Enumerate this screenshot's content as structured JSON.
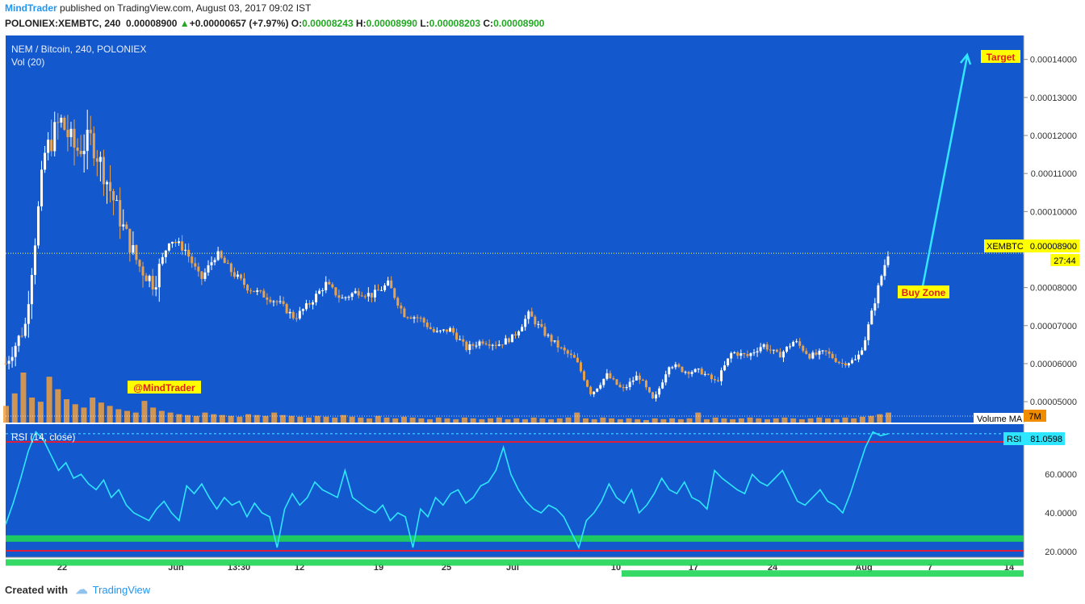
{
  "header": {
    "author": "MindTrader",
    "published_text": "published on TradingView.com, August 03, 2017 09:02 IST",
    "symbol_line": "POLONIEX:XEMBTC, 240",
    "last": "0.00008900",
    "change_arrow": "▲",
    "change": "+0.00000657 (+7.97%)",
    "o_label": "O:",
    "o_value": "0.00008243",
    "h_label": "H:",
    "h_value": "0.00008990",
    "l_label": "L:",
    "l_value": "0.00008203",
    "c_label": "C:",
    "c_value": "0.00008900"
  },
  "panel": {
    "main_title": "NEM / Bitcoin, 240, POLONIEX",
    "vol_label": "Vol (20)",
    "rsi_title": "RSI (14, close)",
    "volume_ma_label": "Volume MA",
    "volume_ma_value": "7M"
  },
  "annotations": {
    "target": "Target",
    "buy_zone": "Buy Zone",
    "watermark": "@MindTrader"
  },
  "price_tag": {
    "symbol": "XEMBTC",
    "value": "0.00008900",
    "countdown": "27:44"
  },
  "rsi_tag": {
    "label": "RSI",
    "value": "81.0598"
  },
  "footer": {
    "created": "Created with",
    "brand": "TradingView"
  },
  "colors": {
    "background": "#1358cd",
    "candle_up": "#ffffff",
    "candle_down": "#e9a24c",
    "volume": "#f0a040",
    "zone": "#1fd655",
    "rsi_line": "#2ee6ff",
    "rsi_band": "#e01e3c",
    "tag_yellow": "#ffff00",
    "arrow": "#33e6ff"
  },
  "chart_data": [
    {
      "type": "candlestick",
      "symbol": "POLONIEX:XEMBTC",
      "timeframe": "240",
      "x_ticks": [
        "22",
        "Jun",
        "13:30",
        "12",
        "19",
        "25",
        "Jul",
        "10",
        "17",
        "24",
        "Aug",
        "7",
        "14"
      ],
      "y_ticks": [
        "0.00014000",
        "0.00013000",
        "0.00012000",
        "0.00011000",
        "0.00010000",
        "0.00008000",
        "0.00007000",
        "0.00006000",
        "0.00005000"
      ],
      "ylim": [
        4.45e-05,
        0.0001463
      ],
      "last_price": 8.9e-05,
      "zones": [
        {
          "label": "Target",
          "price": 1.4e-05
        },
        {
          "label": "Buy Zone",
          "price": 7.7e-06
        },
        {
          "label": "",
          "price": 4.8e-06
        }
      ],
      "close_path": [
        [
          0,
          6e-05
        ],
        [
          5,
          7e-05
        ],
        [
          10,
          0.000115
        ],
        [
          14,
          0.000124
        ],
        [
          18,
          0.000116
        ],
        [
          22,
          0.000119
        ],
        [
          26,
          0.000108
        ],
        [
          30,
          9.6e-05
        ],
        [
          34,
          8.6e-05
        ],
        [
          38,
          8.1e-05
        ],
        [
          42,
          9.3e-05
        ],
        [
          46,
          9e-05
        ],
        [
          50,
          8.2e-05
        ],
        [
          54,
          8.9e-05
        ],
        [
          58,
          8.4e-05
        ],
        [
          62,
          8e-05
        ],
        [
          66,
          7.8e-05
        ],
        [
          70,
          7.6e-05
        ],
        [
          74,
          7.2e-05
        ],
        [
          78,
          7.6e-05
        ],
        [
          82,
          8.1e-05
        ],
        [
          86,
          7.7e-05
        ],
        [
          90,
          7.9e-05
        ],
        [
          94,
          7.8e-05
        ],
        [
          98,
          8.1e-05
        ],
        [
          102,
          7.3e-05
        ],
        [
          106,
          7.2e-05
        ],
        [
          110,
          6.8e-05
        ],
        [
          114,
          6.9e-05
        ],
        [
          118,
          6.4e-05
        ],
        [
          122,
          6.6e-05
        ],
        [
          126,
          6.5e-05
        ],
        [
          130,
          6.7e-05
        ],
        [
          134,
          7.3e-05
        ],
        [
          138,
          6.8e-05
        ],
        [
          142,
          6.4e-05
        ],
        [
          146,
          6.1e-05
        ],
        [
          150,
          5.2e-05
        ],
        [
          154,
          5.7e-05
        ],
        [
          158,
          5.3e-05
        ],
        [
          162,
          5.7e-05
        ],
        [
          166,
          5e-05
        ],
        [
          170,
          6e-05
        ],
        [
          174,
          5.8e-05
        ],
        [
          178,
          5.8e-05
        ],
        [
          182,
          5.5e-05
        ],
        [
          186,
          6.3e-05
        ],
        [
          190,
          6.2e-05
        ],
        [
          194,
          6.5e-05
        ],
        [
          198,
          6.2e-05
        ],
        [
          202,
          6.6e-05
        ],
        [
          206,
          6.2e-05
        ],
        [
          210,
          6.3e-05
        ],
        [
          214,
          6e-05
        ],
        [
          218,
          6.1e-05
        ],
        [
          220,
          6.6e-05
        ],
        [
          222,
          7.4e-05
        ],
        [
          224,
          8.2e-05
        ],
        [
          226,
          8.9e-05
        ]
      ]
    },
    {
      "type": "line",
      "title": "RSI (14, close)",
      "y_ticks": [
        "60.0000",
        "40.0000",
        "20.0000"
      ],
      "ylim": [
        17,
        86
      ],
      "bands": [
        78,
        21
      ],
      "current": 81.0598,
      "series": [
        {
          "name": "RSI",
          "values": [
            34,
            45,
            58,
            72,
            82,
            78,
            70,
            62,
            66,
            58,
            60,
            55,
            52,
            57,
            48,
            52,
            44,
            40,
            38,
            36,
            42,
            46,
            40,
            36,
            54,
            50,
            55,
            48,
            42,
            48,
            44,
            46,
            38,
            45,
            40,
            38,
            22,
            42,
            50,
            44,
            48,
            56,
            52,
            50,
            48,
            62,
            48,
            45,
            42,
            40,
            44,
            36,
            40,
            38,
            22,
            42,
            38,
            48,
            44,
            50,
            52,
            45,
            48,
            54,
            56,
            62,
            74,
            60,
            52,
            46,
            42,
            40,
            44,
            42,
            38,
            30,
            22,
            36,
            40,
            46,
            55,
            48,
            45,
            52,
            40,
            44,
            50,
            58,
            52,
            50,
            56,
            48,
            46,
            42,
            62,
            58,
            55,
            52,
            50,
            60,
            56,
            54,
            58,
            62,
            54,
            46,
            44,
            48,
            52,
            46,
            44,
            40,
            50,
            62,
            74,
            82,
            80,
            81
          ]
        }
      ]
    },
    {
      "type": "bar",
      "title": "Vol (20)",
      "series": [
        {
          "name": "Volume",
          "values": [
            20,
            35,
            60,
            30,
            25,
            55,
            40,
            28,
            22,
            18,
            30,
            24,
            20,
            16,
            14,
            12,
            26,
            18,
            14,
            12,
            10,
            9,
            8,
            12,
            10,
            9,
            8,
            7,
            10,
            9,
            8,
            12,
            9,
            8,
            7,
            6,
            8,
            7,
            6,
            9,
            7,
            6,
            5,
            8,
            6,
            5,
            7,
            6,
            5,
            4,
            6,
            5,
            4,
            6,
            5,
            4,
            5,
            6,
            4,
            5,
            4,
            6,
            5,
            4,
            5,
            6,
            12,
            5,
            4,
            6,
            5,
            4,
            5,
            4,
            3,
            5,
            4,
            5,
            4,
            5,
            12,
            4,
            6,
            5,
            4,
            5,
            6,
            5,
            4,
            5,
            6,
            5,
            4,
            5,
            6,
            5,
            4,
            6,
            5,
            7,
            8,
            10,
            12
          ]
        }
      ]
    }
  ]
}
